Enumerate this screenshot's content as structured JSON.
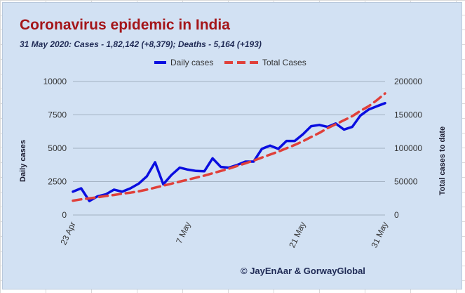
{
  "colors": {
    "panel_background": "#d2e1f3",
    "title": "#a4161a",
    "daily_series": "#0a0ee0",
    "total_series": "#e0403a",
    "gridline": "#a3b1c2"
  },
  "chart_data": {
    "type": "line",
    "title": "Coronavirus epidemic in India",
    "subtitle": "31 May 2020: Cases - 1,82,142 (+8,379); Deaths - 5,164 (+193)",
    "ylabel": "Daily cases",
    "y2label": "Total  cases to date",
    "ylim": [
      0,
      10000
    ],
    "y2lim": [
      0,
      200000
    ],
    "y_ticks": [
      "0",
      "2500",
      "5000",
      "7500",
      "10000"
    ],
    "y2_ticks": [
      "0",
      "50000",
      "100000",
      "150000",
      "200000"
    ],
    "y_tick_values": [
      0,
      2500,
      5000,
      7500,
      10000
    ],
    "y2_tick_values": [
      0,
      50000,
      100000,
      150000,
      200000
    ],
    "x_tick_labels": [
      "23 Apr",
      "7 May",
      "21 May",
      "31 May"
    ],
    "x_tick_days": [
      0,
      14,
      28,
      38
    ],
    "grid": true,
    "legend_position": "top",
    "x": [
      "23 Apr",
      "24 Apr",
      "25 Apr",
      "26 Apr",
      "27 Apr",
      "28 Apr",
      "29 Apr",
      "30 Apr",
      "1 May",
      "2 May",
      "3 May",
      "4 May",
      "5 May",
      "6 May",
      "7 May",
      "8 May",
      "9 May",
      "10 May",
      "11 May",
      "12 May",
      "13 May",
      "14 May",
      "15 May",
      "16 May",
      "17 May",
      "18 May",
      "19 May",
      "20 May",
      "21 May",
      "22 May",
      "23 May",
      "24 May",
      "25 May",
      "26 May",
      "27 May",
      "28 May",
      "29 May",
      "30 May",
      "31 May"
    ],
    "series": [
      {
        "name": "Daily cases",
        "axis": "left",
        "style": "solid",
        "values": [
          1750,
          2000,
          1050,
          1400,
          1550,
          1900,
          1750,
          2000,
          2350,
          2900,
          3950,
          2300,
          3000,
          3550,
          3400,
          3300,
          3280,
          4250,
          3600,
          3550,
          3750,
          4000,
          4000,
          4950,
          5200,
          4950,
          5550,
          5550,
          6050,
          6650,
          6750,
          6600,
          6850,
          6400,
          6600,
          7450,
          7900,
          8150,
          8379
        ]
      },
      {
        "name": "Total Cases",
        "axis": "right",
        "style": "dashed",
        "values": [
          21500,
          23500,
          25000,
          26500,
          28500,
          30000,
          32000,
          33500,
          35500,
          38000,
          41000,
          44000,
          47000,
          50000,
          53000,
          56000,
          59000,
          62500,
          66000,
          69500,
          73500,
          77500,
          81500,
          86000,
          90500,
          95000,
          100000,
          105000,
          110500,
          117000,
          123000,
          130000,
          136000,
          142000,
          148000,
          156000,
          163000,
          172000,
          182142
        ]
      }
    ],
    "credit": "© JayEnAar & GorwayGlobal"
  }
}
